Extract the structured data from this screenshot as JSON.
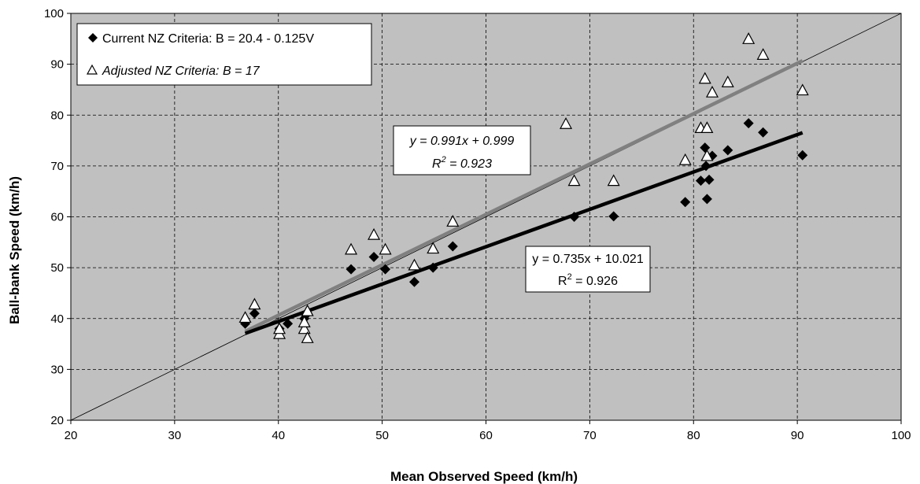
{
  "chart_data": {
    "type": "scatter",
    "xlabel": "Mean Observed Speed (km/h)",
    "ylabel": "Ball-bank Speed (km/h)",
    "xlim": [
      20,
      100
    ],
    "ylim": [
      20,
      100
    ],
    "xticks": [
      "20",
      "30",
      "40",
      "50",
      "60",
      "70",
      "80",
      "90",
      "100"
    ],
    "yticks": [
      "20",
      "30",
      "40",
      "50",
      "60",
      "70",
      "80",
      "90",
      "100"
    ],
    "grid": true,
    "grid_style": "dashed",
    "legend_position": "top-left",
    "colors": {
      "plot_bg": "#c0c0c0",
      "current_marker": "#000000",
      "adjusted_marker": "#ffffff",
      "current_trend": "#000000",
      "adjusted_trend": "#808080",
      "reference_line": "#000000"
    },
    "reference_line": {
      "type": "y=x",
      "x": [
        20,
        100
      ],
      "y": [
        20,
        100
      ]
    },
    "series": [
      {
        "name": "Current NZ Criteria: B = 20.4 - 0.125V",
        "marker": "diamond",
        "italic": false,
        "points": [
          [
            36.8,
            39.0
          ],
          [
            37.7,
            41.0
          ],
          [
            40.1,
            38.0
          ],
          [
            40.9,
            39.0
          ],
          [
            42.5,
            40.0
          ],
          [
            42.8,
            41.0
          ],
          [
            47.0,
            49.7
          ],
          [
            49.2,
            52.1
          ],
          [
            50.3,
            49.7
          ],
          [
            53.1,
            47.2
          ],
          [
            54.9,
            50.0
          ],
          [
            56.8,
            54.2
          ],
          [
            68.5,
            60.0
          ],
          [
            72.3,
            60.1
          ],
          [
            79.2,
            62.9
          ],
          [
            80.7,
            67.1
          ],
          [
            81.1,
            73.6
          ],
          [
            81.2,
            70.0
          ],
          [
            81.3,
            63.5
          ],
          [
            81.5,
            67.3
          ],
          [
            81.8,
            72.0
          ],
          [
            83.3,
            73.1
          ],
          [
            85.3,
            78.4
          ],
          [
            86.7,
            76.6
          ],
          [
            90.5,
            72.1
          ]
        ],
        "trendline": {
          "slope": 0.735,
          "intercept": 10.021,
          "x_range": [
            36.8,
            90.5
          ],
          "equation": "y = 0.735x + 10.021",
          "r2_label": "R",
          "r2_value": " = 0.926"
        }
      },
      {
        "name": "Adjusted NZ Criteria: B = 17",
        "marker": "triangle-open",
        "italic": true,
        "points": [
          [
            36.8,
            40.2
          ],
          [
            37.7,
            42.8
          ],
          [
            40.1,
            37.0
          ],
          [
            40.1,
            38.0
          ],
          [
            42.5,
            38.0
          ],
          [
            42.5,
            39.3
          ],
          [
            42.8,
            36.2
          ],
          [
            42.8,
            41.5
          ],
          [
            47.0,
            53.6
          ],
          [
            49.2,
            56.5
          ],
          [
            50.3,
            53.6
          ],
          [
            53.1,
            50.5
          ],
          [
            54.9,
            53.8
          ],
          [
            56.8,
            59.1
          ],
          [
            67.7,
            78.3
          ],
          [
            68.5,
            67.1
          ],
          [
            72.3,
            67.1
          ],
          [
            79.2,
            71.2
          ],
          [
            80.7,
            77.5
          ],
          [
            81.1,
            87.2
          ],
          [
            81.3,
            77.5
          ],
          [
            81.3,
            72.0
          ],
          [
            81.8,
            84.5
          ],
          [
            83.3,
            86.5
          ],
          [
            85.3,
            95.0
          ],
          [
            86.7,
            91.9
          ],
          [
            90.5,
            84.9
          ]
        ],
        "trendline": {
          "slope": 0.991,
          "intercept": 0.999,
          "x_range": [
            36.8,
            90.5
          ],
          "equation": "y = 0.991x + 0.999",
          "r2_label": "R",
          "r2_value": " = 0.923"
        }
      }
    ],
    "r2_superscript": "2"
  }
}
